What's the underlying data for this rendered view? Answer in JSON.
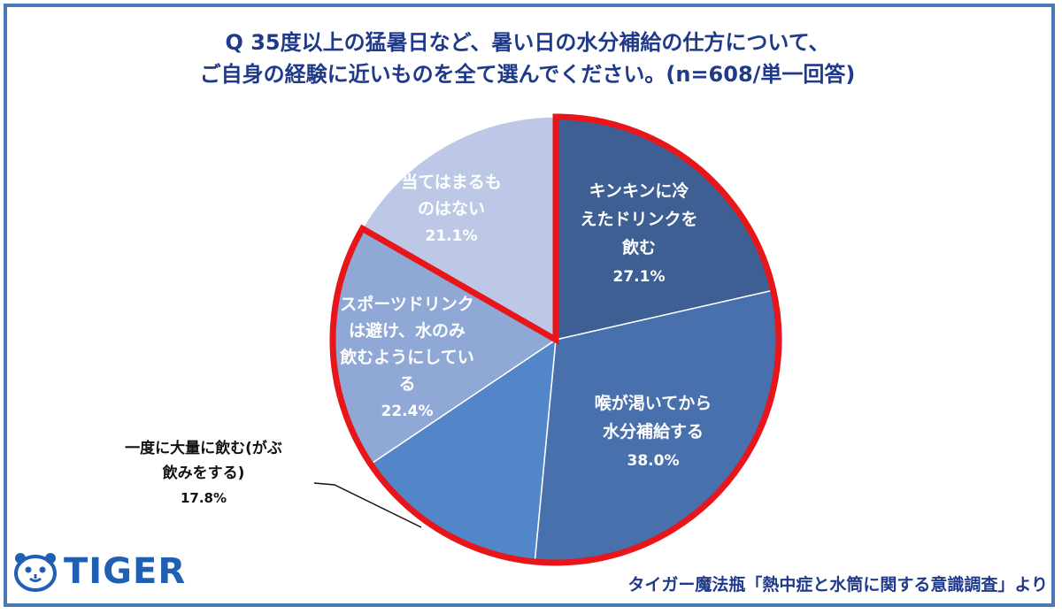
{
  "title": {
    "line1": "Q 35度以上の猛暑日など、暑い日の水分補給の仕方について、",
    "line2": "ご自身の経験に近いものを全て選んでください。(n=608/単一回答)"
  },
  "chart_data": {
    "type": "pie",
    "title": "Q 35度以上の猛暑日など、暑い日の水分補給の仕方について、ご自身の経験に近いものを全て選んでください。(n=608/単一回答)",
    "start_angle_deg": 0,
    "direction": "clockwise",
    "slices": [
      {
        "label_lines": [
          "キンキンに冷",
          "えたドリンクを",
          "飲む"
        ],
        "value": 27.1,
        "value_label": "27.1%",
        "color": "#3d5f93",
        "highlight": true
      },
      {
        "label_lines": [
          "喉が渇いてから",
          "水分補給する"
        ],
        "value": 38.0,
        "value_label": "38.0%",
        "color": "#4770ad",
        "highlight": true
      },
      {
        "label_lines": [
          "一度に大量に飲む(がぶ",
          "飲みをする)"
        ],
        "value": 17.8,
        "value_label": "17.8%",
        "color": "#5286c8",
        "highlight": true,
        "label_outside": true
      },
      {
        "label_lines": [
          "スポーツドリンク",
          "は避け、水のみ",
          "飲むようにしてい",
          "る"
        ],
        "value": 22.4,
        "value_label": "22.4%",
        "color": "#8fa8d6",
        "highlight": true
      },
      {
        "label_lines": [
          "当てはまるも",
          "のはない"
        ],
        "value": 21.1,
        "value_label": "21.1%",
        "color": "#bcc8e6",
        "highlight": false
      }
    ],
    "highlight_color": "#e8161b"
  },
  "logo": {
    "text": "TIGER",
    "color": "#1f5fb4"
  },
  "source": "タイガー魔法瓶「熱中症と水筒に関する意識調査」より"
}
